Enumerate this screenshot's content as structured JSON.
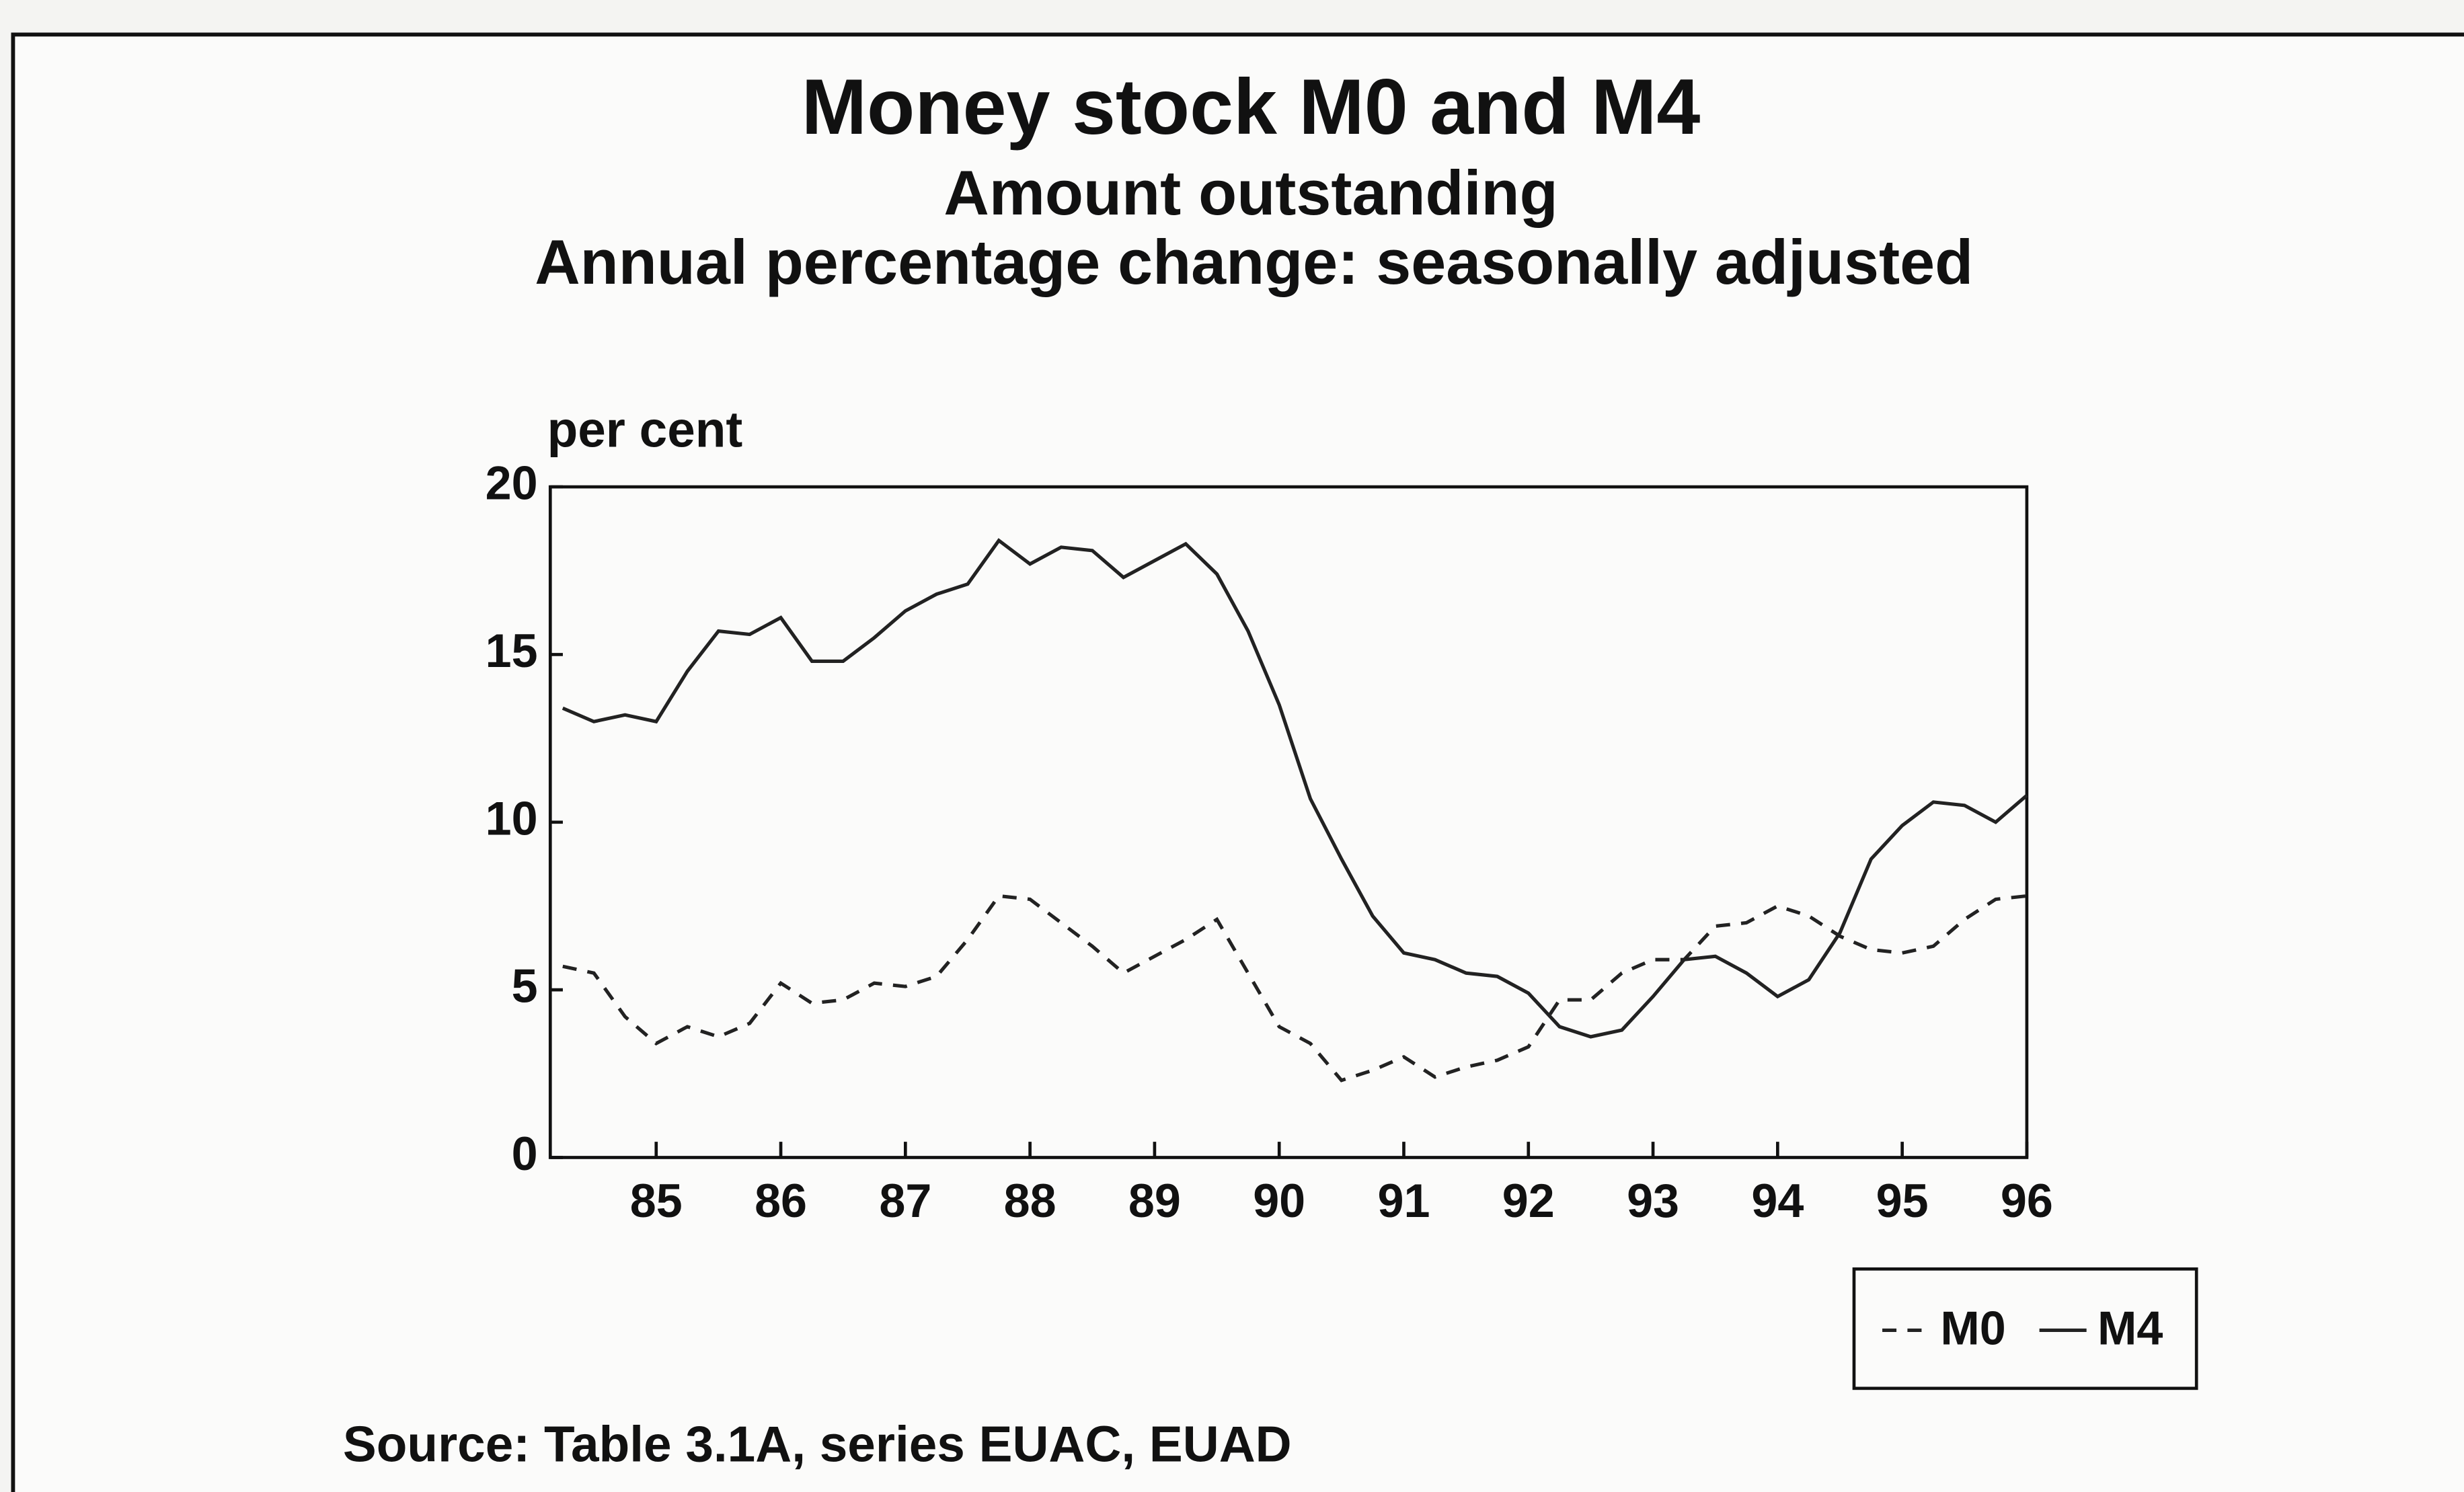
{
  "chart_data": {
    "type": "line",
    "title": "Money stock M0 and M4",
    "subtitle": [
      "Amount outstanding",
      "Annual percentage change: seasonally adjusted"
    ],
    "y_label": "per cent",
    "source": "Source: Table 3.1A, series EUAC, EUAD",
    "x": [
      84.25,
      84.5,
      84.75,
      85,
      85.25,
      85.5,
      85.75,
      86,
      86.25,
      86.5,
      86.75,
      87,
      87.25,
      87.5,
      87.75,
      88,
      88.25,
      88.5,
      88.75,
      89,
      89.25,
      89.5,
      89.75,
      90,
      90.25,
      90.5,
      90.75,
      91,
      91.25,
      91.5,
      91.75,
      92,
      92.25,
      92.5,
      92.75,
      93,
      93.25,
      93.5,
      93.75,
      94,
      94.25,
      94.5,
      94.75,
      95,
      95.25,
      95.5,
      95.75,
      96
    ],
    "series": [
      {
        "name": "M0",
        "color": "#222222",
        "line_style": "dashed",
        "values": [
          5.7,
          5.5,
          4.2,
          3.4,
          3.9,
          3.6,
          4.0,
          5.2,
          4.6,
          4.7,
          5.2,
          5.1,
          5.4,
          6.5,
          7.8,
          7.7,
          7.0,
          6.3,
          5.5,
          6.0,
          6.5,
          7.1,
          5.5,
          3.9,
          3.4,
          2.3,
          2.6,
          3.0,
          2.4,
          2.7,
          2.9,
          3.3,
          4.7,
          4.7,
          5.5,
          5.9,
          5.9,
          6.9,
          7.0,
          7.5,
          7.2,
          6.6,
          6.2,
          6.1,
          6.3,
          7.1,
          7.7,
          7.8
        ]
      },
      {
        "name": "M4",
        "color": "#222222",
        "line_style": "solid",
        "values": [
          13.4,
          13.0,
          13.2,
          13.0,
          14.5,
          15.7,
          15.6,
          16.1,
          14.8,
          14.8,
          15.5,
          16.3,
          16.8,
          17.1,
          18.4,
          17.7,
          18.2,
          18.1,
          17.3,
          17.8,
          18.3,
          17.4,
          15.7,
          13.5,
          10.7,
          8.9,
          7.2,
          6.1,
          5.9,
          5.5,
          5.4,
          4.9,
          3.9,
          3.6,
          3.8,
          4.8,
          5.9,
          6.0,
          5.5,
          4.8,
          5.3,
          6.7,
          8.9,
          9.9,
          10.6,
          10.5,
          10.0,
          10.8
        ]
      }
    ],
    "xlim": [
      84.15,
      96
    ],
    "xticks": [
      85,
      86,
      87,
      88,
      89,
      90,
      91,
      92,
      93,
      94,
      95,
      96
    ],
    "ylim": [
      0,
      20
    ],
    "yticks": [
      0,
      5,
      10,
      15,
      20
    ],
    "grid": false,
    "legend": "lower right"
  }
}
